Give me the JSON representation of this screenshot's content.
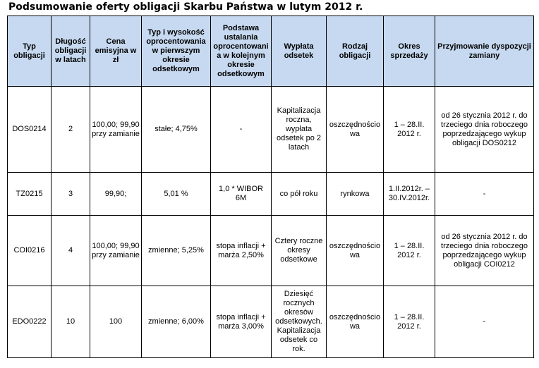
{
  "title": "Podsumowanie oferty obligacji Skarbu Państwa w lutym 2012 r.",
  "table": {
    "header": [
      "Typ obligacji",
      "Długość obligacji w latach",
      "Cena emisyjna w zł",
      "Typ i wysokość oprocentowania w pierwszym okresie odsetkowym",
      "Podstawa ustalania oprocentowania w kolejnym okresie odsetkowym",
      "Wypłata odsetek",
      "Rodzaj obligacji",
      "Okres sprzedaży",
      "Przyjmowanie dyspozycji zamiany"
    ],
    "rows": [
      [
        "DOS0214",
        "2",
        "100,00; 99,90 przy zamianie",
        "stałe; 4,75%",
        "-",
        "Kapitalizacja roczna, wypłata odsetek po 2 latach",
        "oszczędnościowa",
        "1 – 28.II. 2012 r.",
        "od 26 stycznia 2012 r. do trzeciego dnia roboczego poprzedzającego wykup obligacji DOS0212"
      ],
      [
        "TZ0215",
        "3",
        "99,90;",
        "5,01 %",
        "1,0 * WIBOR 6M",
        "co pół roku",
        "rynkowa",
        "1.II.2012r. – 30.IV.2012r.",
        "-"
      ],
      [
        "COI0216",
        "4",
        "100,00; 99,90 przy zamianie",
        "zmienne; 5,25%",
        "stopa inflacji + marża 2,50%",
        "Cztery roczne okresy odsetkowe",
        "oszczędnościowa",
        "1 – 28.II. 2012 r.",
        "od 26 stycznia 2012 r. do trzeciego dnia roboczego poprzedzającego wykup obligacji COI0212"
      ],
      [
        "EDO0222",
        "10",
        "100",
        "zmienne; 6,00%",
        "stopa inflacji + marża 3,00%",
        "Dziesięć rocznych okresów odsetkowych. Kapitalizacja odsetek co rok.",
        "oszczędnościowa",
        "1 – 28.II. 2012 r.",
        "-"
      ]
    ]
  }
}
